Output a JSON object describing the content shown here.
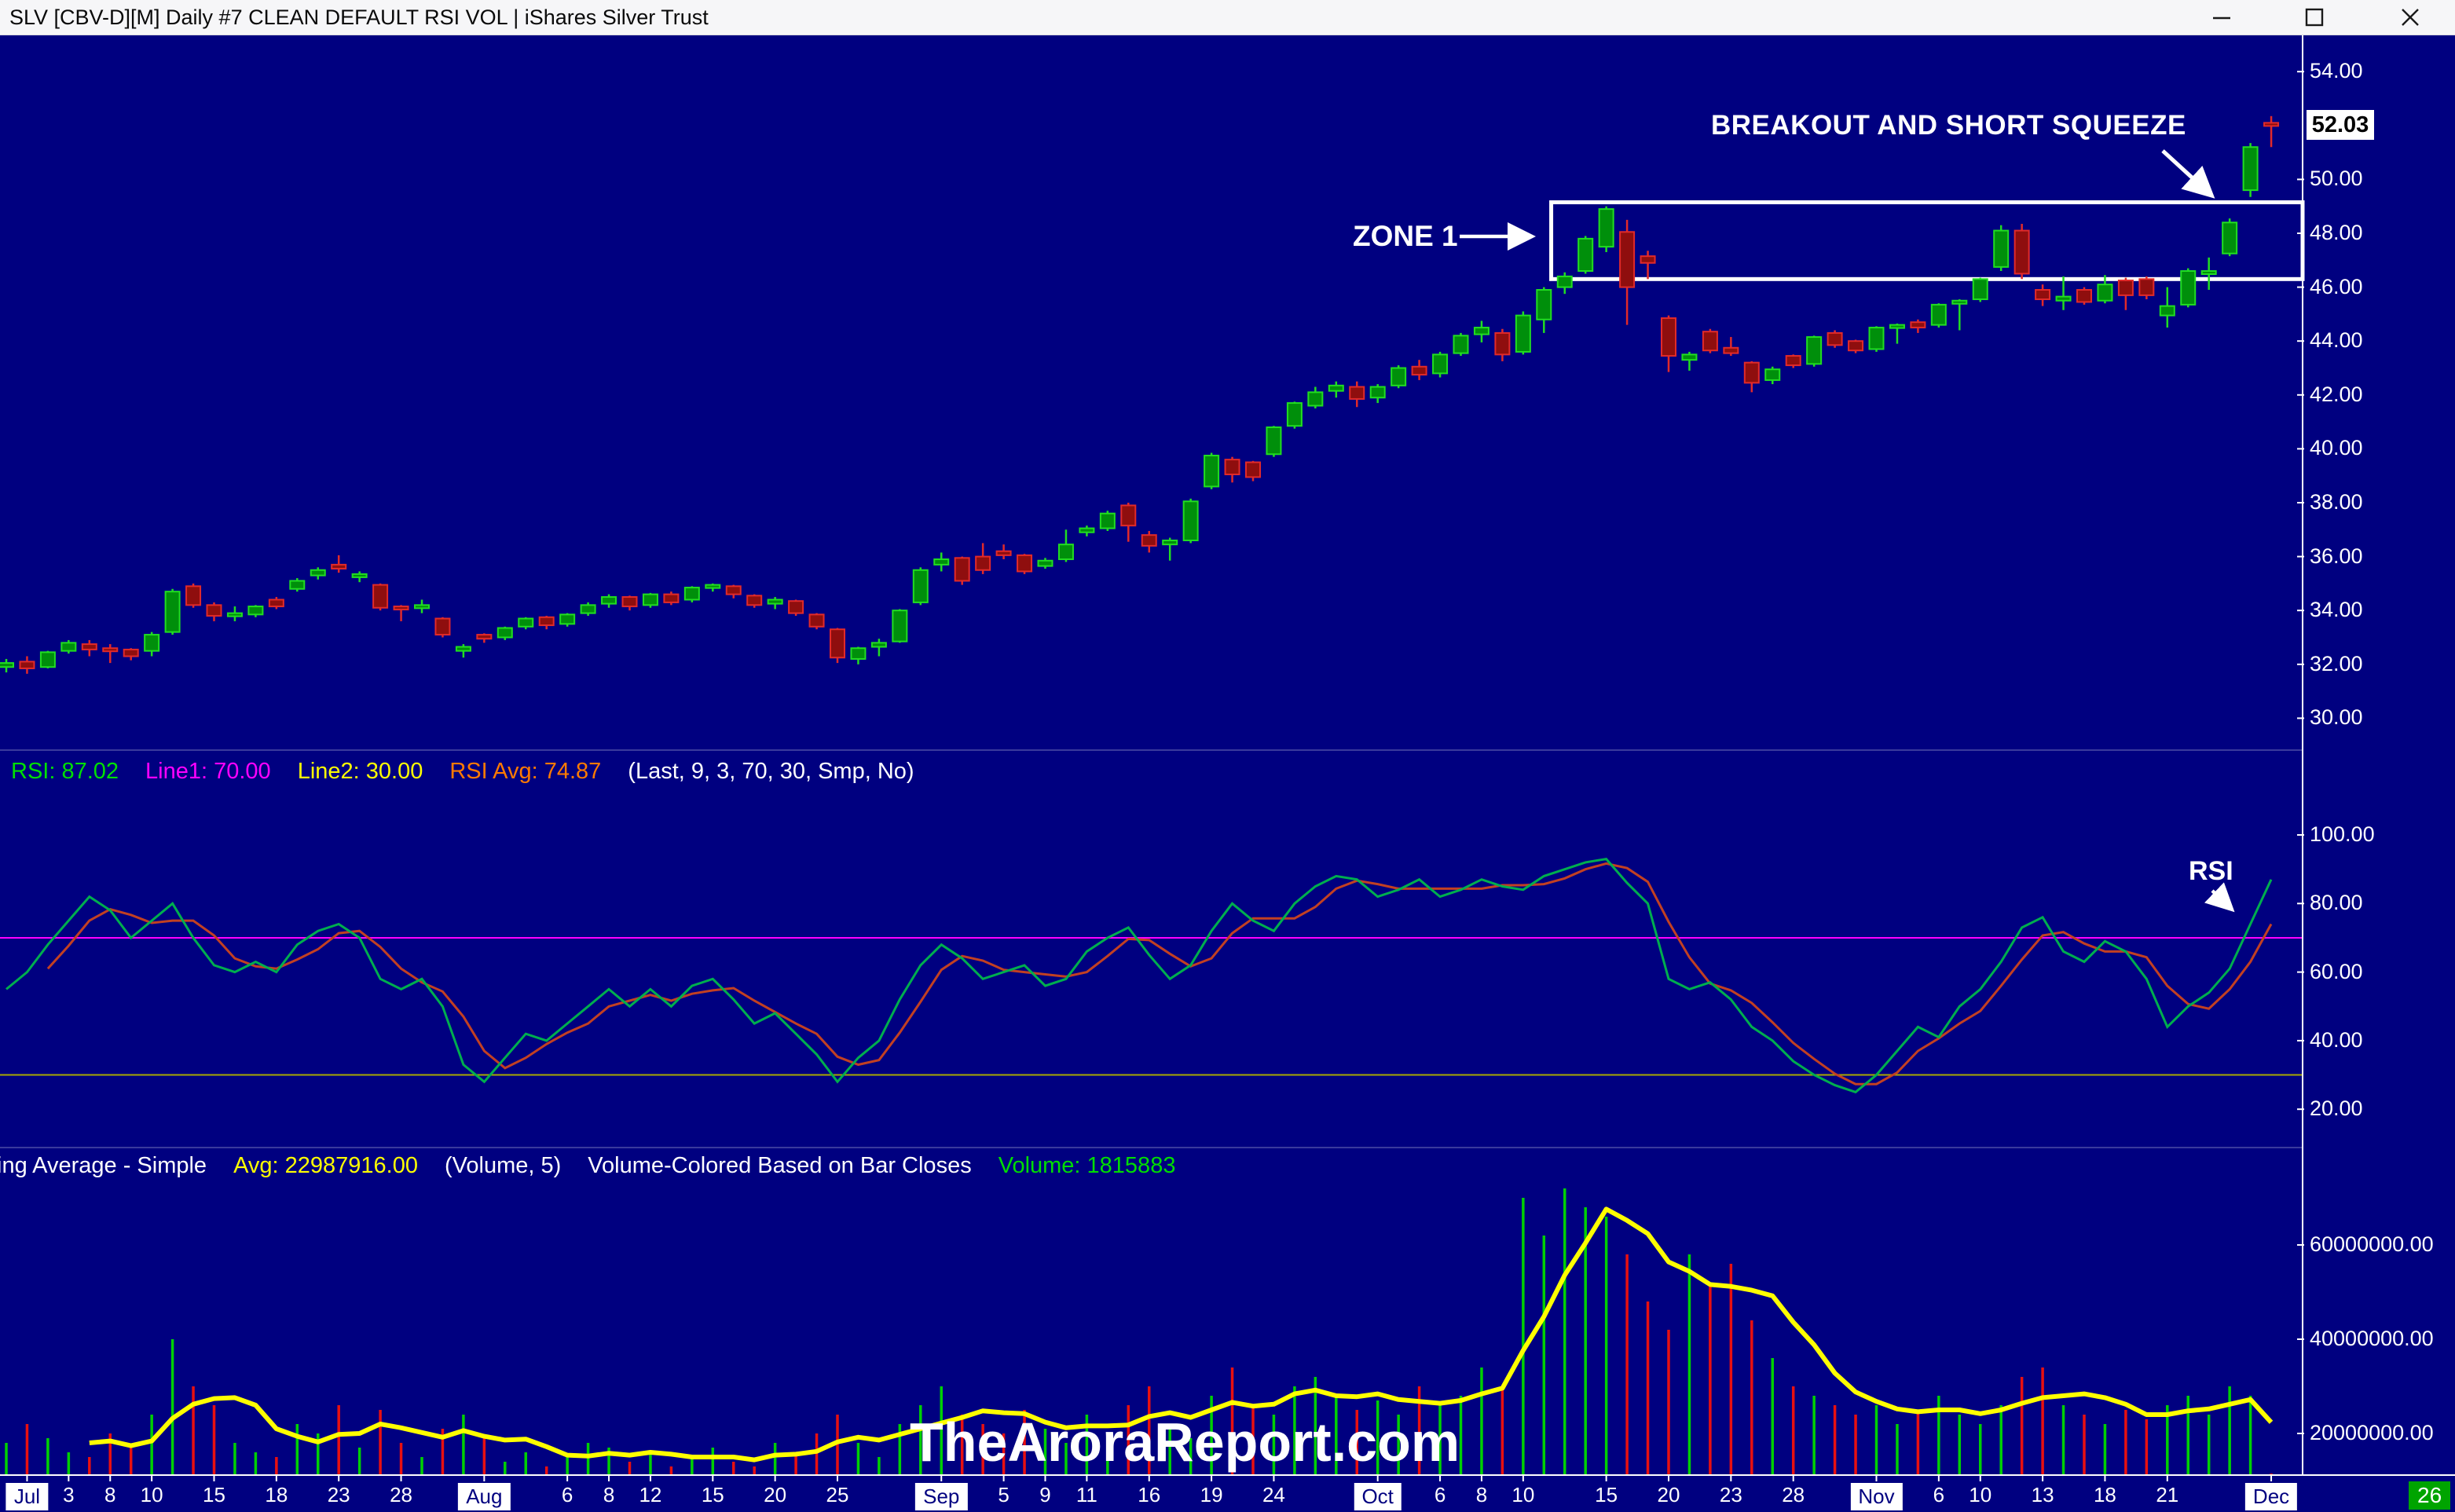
{
  "window": {
    "title": "SLV [CBV-D][M]  Daily #7 CLEAN DEFAULT RSI VOL | iShares Silver Trust"
  },
  "annotations": {
    "breakout": "BREAKOUT AND SHORT SQUEEZE",
    "zone1": "ZONE 1",
    "rsi": "RSI"
  },
  "watermark": "TheAroraReport.com",
  "badge": "26",
  "rsi_header": {
    "segments": [
      {
        "text": "RSI: 87.02",
        "color": "#00e000"
      },
      {
        "text": "Line1: 70.00",
        "color": "#ff00ff"
      },
      {
        "text": "Line2: 30.00",
        "color": "#ffff00"
      },
      {
        "text": "RSI Avg: 74.87",
        "color": "#ff7a00"
      },
      {
        "text": "(Last, 9, 3, 70, 30, Smp, No)",
        "color": "#ffffff"
      }
    ]
  },
  "volume_header": {
    "segments": [
      {
        "text": "ing Average - Simple",
        "color": "#ffffff"
      },
      {
        "text": "Avg: 22987916.00",
        "color": "#ffff00"
      },
      {
        "text": "(Volume, 5)",
        "color": "#ffffff"
      },
      {
        "text": "Volume-Colored Based on Bar Closes",
        "color": "#ffffff"
      },
      {
        "text": "Volume: 1815883",
        "color": "#00dd00"
      }
    ]
  },
  "colors": {
    "background": "#000080",
    "up_fill": "#008f0b",
    "up_stroke": "#21dd21",
    "down_fill": "#8f0e0e",
    "down_stroke": "#e12a2a",
    "vol_up": "#00d000",
    "vol_down": "#e81010",
    "vol_ma": "#ffff00",
    "rsi_line": "#00ae4e",
    "rsi_avg": "#c24022",
    "line1": "#ff00ff",
    "line2": "#a8a800",
    "axis": "#ffffff",
    "zone": "#ffffff"
  },
  "chart_data": {
    "type": "candlestick",
    "title": "SLV Daily - iShares Silver Trust",
    "last_price": "52.03",
    "last_price_value": 52.03,
    "price_axis": {
      "min": 29.2,
      "max": 55.6,
      "tick_step": 2
    },
    "price_ticks": [
      {
        "label": "54.00",
        "value": 54
      },
      {
        "label": "50.00",
        "value": 50
      },
      {
        "label": "48.00",
        "value": 48
      },
      {
        "label": "46.00",
        "value": 46
      },
      {
        "label": "44.00",
        "value": 44
      },
      {
        "label": "42.00",
        "value": 42
      },
      {
        "label": "40.00",
        "value": 40
      },
      {
        "label": "38.00",
        "value": 38
      },
      {
        "label": "36.00",
        "value": 36
      },
      {
        "label": "34.00",
        "value": 34
      },
      {
        "label": "32.00",
        "value": 32
      },
      {
        "label": "30.00",
        "value": 30
      }
    ],
    "rsi_ticks": [
      {
        "label": "100.00",
        "value": 100
      },
      {
        "label": "80.00",
        "value": 80
      },
      {
        "label": "60.00",
        "value": 60
      },
      {
        "label": "40.00",
        "value": 40
      },
      {
        "label": "20.00",
        "value": 20
      }
    ],
    "volume_ticks": [
      {
        "label": "60000000.00",
        "value": 60
      },
      {
        "label": "40000000.00",
        "value": 40
      },
      {
        "label": "20000000.00",
        "value": 20
      }
    ],
    "rsi_settings": {
      "line1": 70,
      "line2": 30,
      "last": 87.02,
      "avg_last": 74.87
    },
    "volume_settings": {
      "ma_period": 5,
      "avg_last": 22987916.0,
      "volume_last": 1815883
    },
    "zone": {
      "label": "ZONE 1",
      "price_low": 46.3,
      "price_high": 49.15,
      "from_index": 74.35
    },
    "x_ticks": [
      {
        "label": "Jul",
        "index": 1,
        "month": true
      },
      {
        "label": "3",
        "index": 3
      },
      {
        "label": "8",
        "index": 5
      },
      {
        "label": "10",
        "index": 7
      },
      {
        "label": "15",
        "index": 10
      },
      {
        "label": "18",
        "index": 13
      },
      {
        "label": "23",
        "index": 16
      },
      {
        "label": "28",
        "index": 19
      },
      {
        "label": "Aug",
        "index": 23,
        "month": true
      },
      {
        "label": "6",
        "index": 27
      },
      {
        "label": "8",
        "index": 29
      },
      {
        "label": "12",
        "index": 31
      },
      {
        "label": "15",
        "index": 34
      },
      {
        "label": "20",
        "index": 37
      },
      {
        "label": "25",
        "index": 40
      },
      {
        "label": "Sep",
        "index": 45,
        "month": true
      },
      {
        "label": "5",
        "index": 48
      },
      {
        "label": "9",
        "index": 50
      },
      {
        "label": "11",
        "index": 52
      },
      {
        "label": "16",
        "index": 55
      },
      {
        "label": "19",
        "index": 58
      },
      {
        "label": "24",
        "index": 61
      },
      {
        "label": "Oct",
        "index": 66,
        "month": true
      },
      {
        "label": "6",
        "index": 69
      },
      {
        "label": "8",
        "index": 71
      },
      {
        "label": "10",
        "index": 73
      },
      {
        "label": "15",
        "index": 77
      },
      {
        "label": "20",
        "index": 80
      },
      {
        "label": "23",
        "index": 83
      },
      {
        "label": "28",
        "index": 86
      },
      {
        "label": "Nov",
        "index": 90,
        "month": true
      },
      {
        "label": "6",
        "index": 93
      },
      {
        "label": "10",
        "index": 95
      },
      {
        "label": "13",
        "index": 98
      },
      {
        "label": "18",
        "index": 101
      },
      {
        "label": "21",
        "index": 104
      },
      {
        "label": "Dec",
        "index": 109,
        "month": true
      }
    ],
    "bars": [
      [
        31.9,
        32.2,
        31.7,
        32.05,
        18
      ],
      [
        32.1,
        32.3,
        31.65,
        31.85,
        22
      ],
      [
        31.9,
        32.5,
        31.85,
        32.45,
        19
      ],
      [
        32.5,
        32.9,
        32.4,
        32.8,
        16
      ],
      [
        32.75,
        32.9,
        32.3,
        32.55,
        15
      ],
      [
        32.6,
        32.75,
        32.05,
        32.55,
        20
      ],
      [
        32.55,
        32.6,
        32.15,
        32.3,
        17
      ],
      [
        32.5,
        33.2,
        32.3,
        33.1,
        24
      ],
      [
        33.2,
        34.8,
        33.1,
        34.7,
        40
      ],
      [
        34.9,
        35.0,
        34.1,
        34.2,
        30
      ],
      [
        34.2,
        34.3,
        33.6,
        33.8,
        26
      ],
      [
        33.85,
        34.15,
        33.6,
        33.9,
        18
      ],
      [
        33.85,
        34.2,
        33.75,
        34.15,
        16
      ],
      [
        34.4,
        34.5,
        34.05,
        34.15,
        15
      ],
      [
        34.8,
        35.2,
        34.7,
        35.1,
        22
      ],
      [
        35.3,
        35.6,
        35.15,
        35.5,
        20
      ],
      [
        35.7,
        36.05,
        35.4,
        35.55,
        26
      ],
      [
        35.3,
        35.45,
        35.05,
        35.35,
        17
      ],
      [
        34.95,
        35.0,
        34.0,
        34.1,
        25
      ],
      [
        34.15,
        34.2,
        33.6,
        34.05,
        18
      ],
      [
        34.1,
        34.4,
        33.9,
        34.2,
        15
      ],
      [
        33.7,
        33.75,
        33.0,
        33.1,
        21
      ],
      [
        32.5,
        32.75,
        32.25,
        32.65,
        24
      ],
      [
        33.1,
        33.15,
        32.8,
        32.95,
        19
      ],
      [
        33.0,
        33.4,
        32.9,
        33.35,
        14
      ],
      [
        33.4,
        33.75,
        33.3,
        33.7,
        16
      ],
      [
        33.75,
        33.8,
        33.3,
        33.45,
        13
      ],
      [
        33.5,
        33.9,
        33.4,
        33.85,
        15
      ],
      [
        33.9,
        34.3,
        33.8,
        34.2,
        18
      ],
      [
        34.25,
        34.6,
        34.1,
        34.5,
        17
      ],
      [
        34.5,
        34.55,
        34.0,
        34.15,
        14
      ],
      [
        34.2,
        34.65,
        34.1,
        34.6,
        16
      ],
      [
        34.6,
        34.7,
        34.2,
        34.3,
        13
      ],
      [
        34.4,
        34.9,
        34.3,
        34.85,
        15
      ],
      [
        34.9,
        35.0,
        34.7,
        34.95,
        17
      ],
      [
        34.9,
        34.95,
        34.45,
        34.6,
        14
      ],
      [
        34.55,
        34.6,
        34.1,
        34.2,
        13
      ],
      [
        34.25,
        34.5,
        34.05,
        34.4,
        18
      ],
      [
        34.35,
        34.4,
        33.8,
        33.9,
        16
      ],
      [
        33.85,
        33.9,
        33.3,
        33.4,
        20
      ],
      [
        33.3,
        33.35,
        32.05,
        32.25,
        24
      ],
      [
        32.2,
        32.65,
        32.0,
        32.6,
        18
      ],
      [
        32.65,
        32.95,
        32.3,
        32.8,
        15
      ],
      [
        32.85,
        34.05,
        32.8,
        34.0,
        22
      ],
      [
        34.3,
        35.6,
        34.2,
        35.5,
        26
      ],
      [
        35.7,
        36.15,
        35.45,
        35.9,
        30
      ],
      [
        35.95,
        36.0,
        34.95,
        35.1,
        24
      ],
      [
        36.0,
        36.5,
        35.35,
        35.5,
        22
      ],
      [
        36.2,
        36.45,
        35.9,
        36.05,
        20
      ],
      [
        36.05,
        36.1,
        35.35,
        35.45,
        25
      ],
      [
        35.65,
        35.95,
        35.55,
        35.85,
        21
      ],
      [
        35.9,
        37.0,
        35.8,
        36.45,
        18
      ],
      [
        36.9,
        37.15,
        36.75,
        37.05,
        24
      ],
      [
        37.05,
        37.7,
        36.95,
        37.6,
        20
      ],
      [
        37.9,
        38.0,
        36.55,
        37.15,
        26
      ],
      [
        36.8,
        36.95,
        36.15,
        36.4,
        30
      ],
      [
        36.45,
        36.7,
        35.85,
        36.6,
        22
      ],
      [
        36.6,
        38.15,
        36.5,
        38.05,
        19
      ],
      [
        38.6,
        39.85,
        38.5,
        39.75,
        28
      ],
      [
        39.6,
        39.7,
        38.75,
        39.05,
        34
      ],
      [
        39.5,
        39.55,
        38.8,
        38.95,
        26
      ],
      [
        39.8,
        40.85,
        39.7,
        40.8,
        24
      ],
      [
        40.85,
        41.75,
        40.75,
        41.7,
        30
      ],
      [
        41.6,
        42.3,
        41.5,
        42.1,
        32
      ],
      [
        42.15,
        42.5,
        41.9,
        42.35,
        28
      ],
      [
        42.3,
        42.5,
        41.55,
        41.85,
        25
      ],
      [
        41.9,
        42.4,
        41.7,
        42.3,
        27
      ],
      [
        42.35,
        43.1,
        42.25,
        43.0,
        24
      ],
      [
        43.05,
        43.3,
        42.55,
        42.75,
        30
      ],
      [
        42.8,
        43.6,
        42.65,
        43.5,
        26
      ],
      [
        43.55,
        44.3,
        43.45,
        44.2,
        28
      ],
      [
        44.25,
        44.75,
        43.95,
        44.5,
        34
      ],
      [
        44.3,
        44.45,
        43.25,
        43.5,
        30
      ],
      [
        43.6,
        45.1,
        43.5,
        44.95,
        70
      ],
      [
        44.8,
        46.0,
        44.3,
        45.9,
        62
      ],
      [
        46.0,
        46.55,
        45.75,
        46.4,
        72
      ],
      [
        46.6,
        47.9,
        46.5,
        47.8,
        68
      ],
      [
        47.5,
        49.0,
        47.3,
        48.9,
        66
      ],
      [
        48.05,
        48.5,
        44.6,
        46.0,
        58
      ],
      [
        47.15,
        47.35,
        46.3,
        46.9,
        48
      ],
      [
        44.85,
        44.95,
        42.85,
        43.45,
        42
      ],
      [
        43.3,
        43.6,
        42.9,
        43.5,
        58
      ],
      [
        44.35,
        44.45,
        43.55,
        43.65,
        52
      ],
      [
        43.75,
        44.15,
        43.45,
        43.55,
        56
      ],
      [
        43.2,
        43.25,
        42.1,
        42.45,
        44
      ],
      [
        42.55,
        43.05,
        42.4,
        42.95,
        36
      ],
      [
        43.45,
        43.5,
        43.0,
        43.1,
        30
      ],
      [
        43.15,
        44.2,
        43.05,
        44.15,
        28
      ],
      [
        44.3,
        44.4,
        43.75,
        43.85,
        26
      ],
      [
        44.0,
        44.05,
        43.55,
        43.65,
        24
      ],
      [
        43.7,
        44.55,
        43.6,
        44.5,
        26
      ],
      [
        44.5,
        44.65,
        43.9,
        44.6,
        22
      ],
      [
        44.7,
        44.8,
        44.3,
        44.5,
        25
      ],
      [
        44.6,
        45.4,
        44.5,
        45.35,
        28
      ],
      [
        45.4,
        45.55,
        44.4,
        45.5,
        24
      ],
      [
        45.55,
        46.35,
        45.45,
        46.3,
        22
      ],
      [
        46.75,
        48.3,
        46.6,
        48.1,
        26
      ],
      [
        48.1,
        48.35,
        46.3,
        46.5,
        32
      ],
      [
        45.9,
        46.1,
        45.3,
        45.55,
        34
      ],
      [
        45.5,
        46.4,
        45.15,
        45.65,
        26
      ],
      [
        45.9,
        46.0,
        45.35,
        45.45,
        24
      ],
      [
        45.5,
        46.45,
        45.4,
        46.1,
        22
      ],
      [
        46.25,
        46.35,
        45.15,
        45.7,
        25
      ],
      [
        46.3,
        46.4,
        45.55,
        45.7,
        23
      ],
      [
        44.95,
        46.0,
        44.5,
        45.3,
        26
      ],
      [
        45.35,
        46.7,
        45.25,
        46.6,
        28
      ],
      [
        46.5,
        47.1,
        45.9,
        46.6,
        24
      ],
      [
        47.25,
        48.55,
        47.15,
        48.4,
        30
      ],
      [
        49.6,
        51.35,
        49.35,
        51.2,
        28
      ],
      [
        52.1,
        52.35,
        51.2,
        52.03,
        1.8
      ]
    ],
    "rsi": [
      55,
      60,
      68,
      75,
      82,
      78,
      70,
      75,
      80,
      70,
      62,
      60,
      63,
      60,
      68,
      72,
      74,
      70,
      58,
      55,
      58,
      50,
      33,
      28,
      35,
      42,
      40,
      45,
      50,
      55,
      50,
      55,
      50,
      56,
      58,
      52,
      45,
      48,
      42,
      36,
      28,
      35,
      40,
      52,
      62,
      68,
      64,
      58,
      60,
      62,
      56,
      58,
      66,
      70,
      73,
      65,
      58,
      62,
      72,
      80,
      75,
      72,
      80,
      85,
      88,
      87,
      82,
      84,
      87,
      82,
      84,
      87,
      85,
      84,
      88,
      90,
      92,
      93,
      86,
      80,
      58,
      55,
      57,
      52,
      44,
      40,
      34,
      30,
      27,
      25,
      30,
      37,
      44,
      41,
      50,
      55,
      63,
      73,
      76,
      66,
      63,
      69,
      66,
      58,
      44,
      50,
      54,
      61,
      74,
      87
    ]
  }
}
